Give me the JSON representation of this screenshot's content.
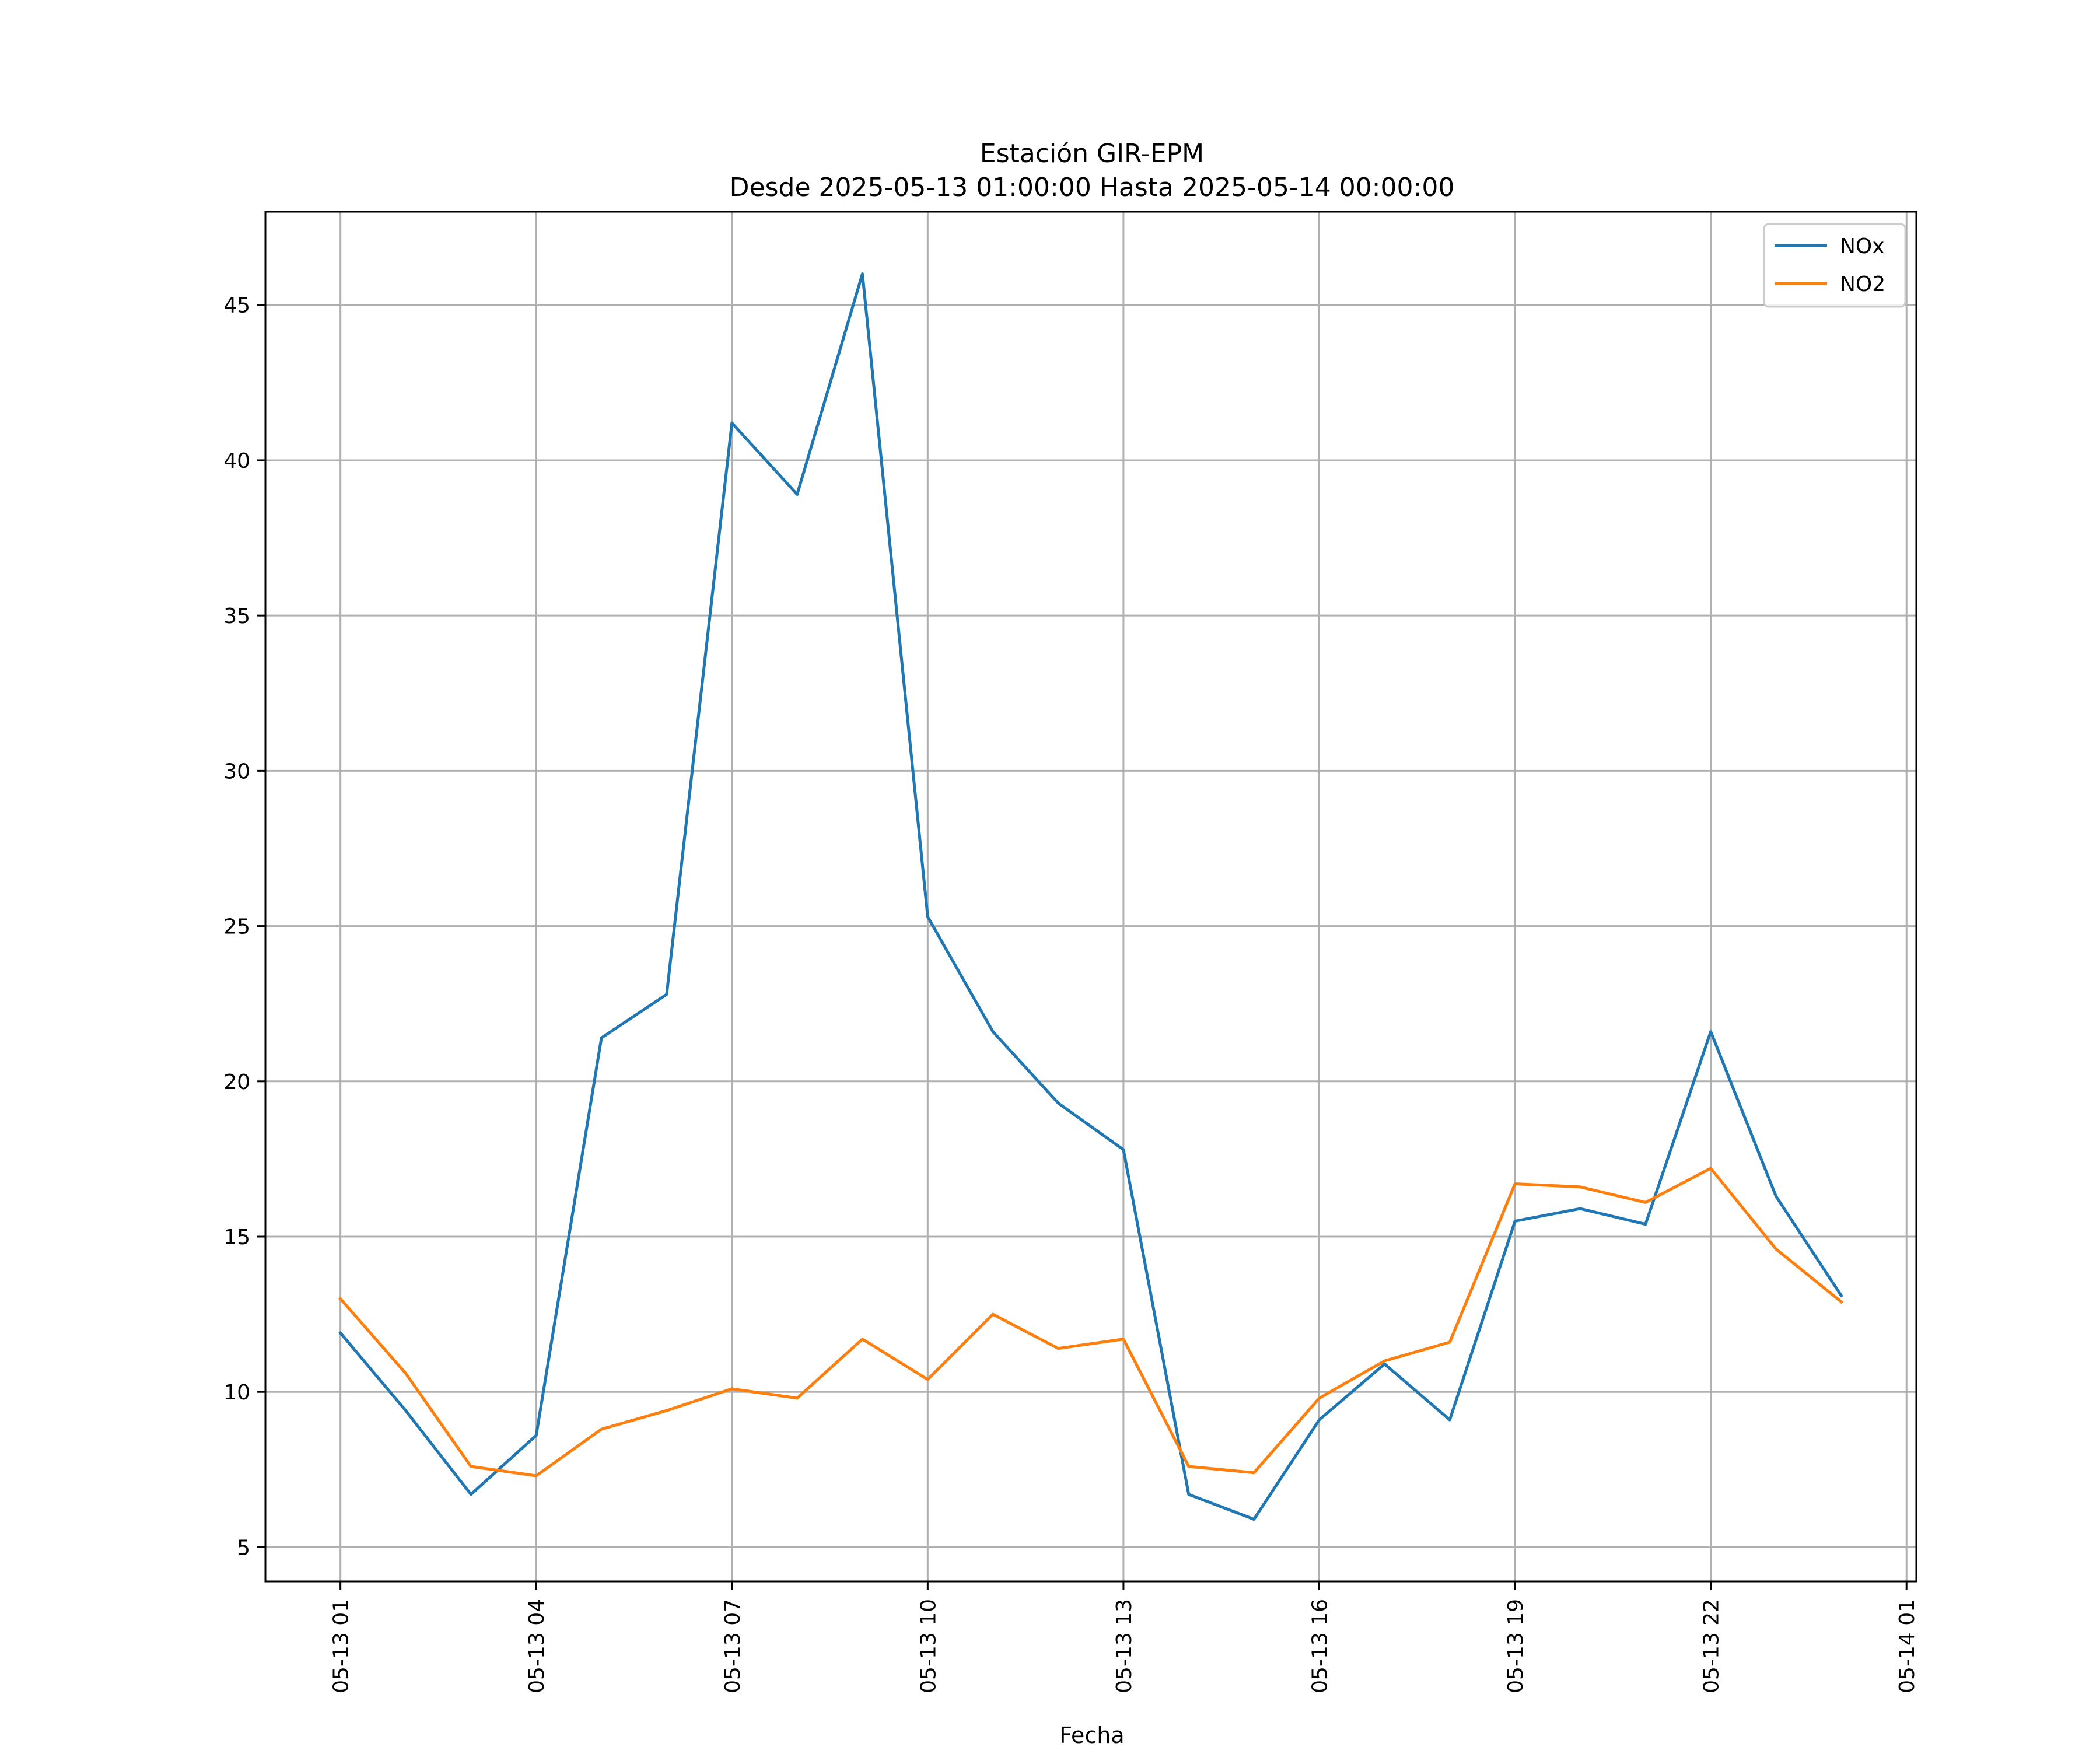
{
  "chart_data": {
    "type": "line",
    "title_line1": "Estación GIR-EPM",
    "title_line2": "Desde 2025-05-13 01:00:00 Hasta 2025-05-14 00:00:00",
    "xlabel": "Fecha",
    "ylabel": "",
    "x": [
      "2025-05-13 01:00",
      "2025-05-13 02:00",
      "2025-05-13 03:00",
      "2025-05-13 04:00",
      "2025-05-13 05:00",
      "2025-05-13 06:00",
      "2025-05-13 07:00",
      "2025-05-13 08:00",
      "2025-05-13 09:00",
      "2025-05-13 10:00",
      "2025-05-13 11:00",
      "2025-05-13 12:00",
      "2025-05-13 13:00",
      "2025-05-13 14:00",
      "2025-05-13 15:00",
      "2025-05-13 16:00",
      "2025-05-13 17:00",
      "2025-05-13 18:00",
      "2025-05-13 19:00",
      "2025-05-13 20:00",
      "2025-05-13 21:00",
      "2025-05-13 22:00",
      "2025-05-13 23:00",
      "2025-05-14 00:00"
    ],
    "series": [
      {
        "name": "NOx",
        "color": "#1f77b4",
        "values": [
          11.9,
          9.4,
          6.7,
          8.6,
          21.4,
          22.8,
          41.2,
          38.9,
          46.0,
          25.3,
          21.6,
          19.3,
          17.8,
          6.7,
          5.9,
          9.1,
          10.9,
          9.1,
          15.5,
          15.9,
          15.4,
          21.6,
          16.3,
          13.1
        ]
      },
      {
        "name": "NO2",
        "color": "#ff7f0e",
        "values": [
          13.0,
          10.6,
          7.6,
          7.3,
          8.8,
          9.4,
          10.1,
          9.8,
          11.7,
          10.4,
          12.5,
          11.4,
          11.7,
          7.6,
          7.4,
          9.8,
          11.0,
          11.6,
          16.7,
          16.6,
          16.1,
          17.2,
          14.6,
          12.9
        ]
      }
    ],
    "xticks": [
      "2025-05-13 01:00",
      "2025-05-13 04:00",
      "2025-05-13 07:00",
      "2025-05-13 10:00",
      "2025-05-13 13:00",
      "2025-05-13 16:00",
      "2025-05-13 19:00",
      "2025-05-13 22:00",
      "2025-05-14 01:00"
    ],
    "xtick_labels": [
      "05-13 01",
      "05-13 04",
      "05-13 07",
      "05-13 10",
      "05-13 13",
      "05-13 16",
      "05-13 19",
      "05-13 22",
      "05-14 01"
    ],
    "yticks": [
      5,
      10,
      15,
      20,
      25,
      30,
      35,
      40,
      45
    ],
    "xlim": [
      "2025-05-12 23:51",
      "2025-05-14 01:09"
    ],
    "ylim": [
      3.9,
      48.0
    ],
    "grid": true,
    "legend_position": "top-right"
  }
}
